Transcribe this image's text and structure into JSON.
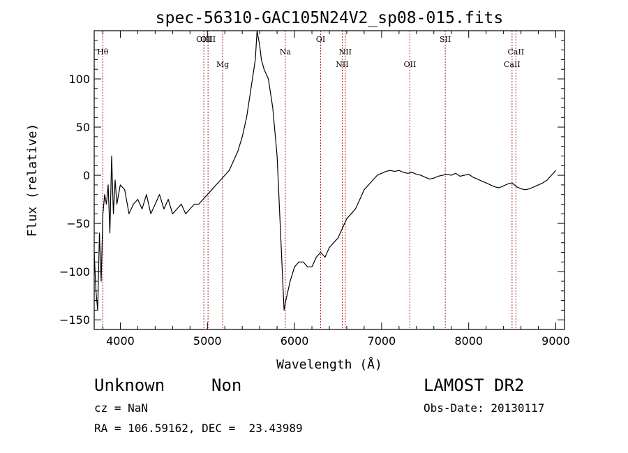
{
  "chart_data": {
    "type": "line",
    "title": "spec-56310-GAC105N24V2_sp08-015.fits",
    "xlabel": "Wavelength (Å)",
    "ylabel": "Flux (relative)",
    "xlim": [
      3700,
      9100
    ],
    "ylim": [
      -160,
      150
    ],
    "xticks": [
      4000,
      5000,
      6000,
      7000,
      8000,
      9000
    ],
    "xtick_labels": [
      "4000",
      "5000",
      "6000",
      "7000",
      "8000",
      "9000"
    ],
    "yticks": [
      100,
      50,
      0,
      -50,
      -100,
      -150
    ],
    "ytick_labels": [
      "100",
      "50",
      "0",
      "−50",
      "−100",
      "−150"
    ],
    "grid": false,
    "series_color": "#000000",
    "line_marker_color": "#b22222",
    "spectrum": {
      "x": [
        3700,
        3720,
        3740,
        3760,
        3780,
        3800,
        3820,
        3840,
        3860,
        3880,
        3900,
        3920,
        3940,
        3960,
        3980,
        4000,
        4050,
        4100,
        4150,
        4200,
        4250,
        4300,
        4350,
        4400,
        4450,
        4500,
        4550,
        4600,
        4650,
        4700,
        4750,
        4800,
        4850,
        4900,
        4950,
        5000,
        5050,
        5100,
        5150,
        5200,
        5250,
        5300,
        5350,
        5400,
        5450,
        5500,
        5550,
        5570,
        5600,
        5620,
        5650,
        5700,
        5750,
        5800,
        5820,
        5840,
        5860,
        5880,
        5900,
        5950,
        6000,
        6050,
        6100,
        6150,
        6200,
        6250,
        6300,
        6350,
        6400,
        6450,
        6500,
        6550,
        6600,
        6650,
        6700,
        6750,
        6800,
        6850,
        6900,
        6950,
        7000,
        7050,
        7100,
        7150,
        7200,
        7250,
        7300,
        7350,
        7400,
        7450,
        7500,
        7550,
        7600,
        7650,
        7700,
        7750,
        7800,
        7850,
        7900,
        7950,
        8000,
        8050,
        8100,
        8150,
        8200,
        8250,
        8300,
        8350,
        8400,
        8450,
        8500,
        8550,
        8600,
        8650,
        8700,
        8750,
        8800,
        8850,
        8900,
        8950,
        9000
      ],
      "y": [
        -80,
        -120,
        -140,
        -60,
        -110,
        -40,
        -20,
        -30,
        -10,
        -60,
        20,
        -40,
        -5,
        -30,
        -20,
        -10,
        -15,
        -40,
        -30,
        -25,
        -35,
        -20,
        -40,
        -30,
        -20,
        -35,
        -25,
        -40,
        -35,
        -30,
        -40,
        -35,
        -30,
        -30,
        -25,
        -20,
        -15,
        -10,
        -5,
        0,
        5,
        15,
        25,
        40,
        60,
        90,
        120,
        150,
        135,
        120,
        110,
        100,
        70,
        20,
        -20,
        -60,
        -100,
        -140,
        -130,
        -110,
        -95,
        -90,
        -90,
        -95,
        -95,
        -85,
        -80,
        -85,
        -75,
        -70,
        -65,
        -55,
        -45,
        -40,
        -35,
        -25,
        -15,
        -10,
        -5,
        0,
        2,
        4,
        5,
        4,
        5,
        3,
        2,
        3,
        1,
        0,
        -2,
        -4,
        -3,
        -1,
        0,
        1,
        0,
        2,
        -1,
        0,
        1,
        -2,
        -4,
        -6,
        -8,
        -10,
        -12,
        -13,
        -11,
        -9,
        -8,
        -12,
        -14,
        -15,
        -14,
        -12,
        -10,
        -8,
        -5,
        0,
        5
      ]
    },
    "lines": [
      {
        "label": "Hθ",
        "x": 3798,
        "row": 1
      },
      {
        "label": "OIII",
        "x": 4959,
        "row": 0
      },
      {
        "label": "OIII",
        "x": 5007,
        "row": 0
      },
      {
        "label": "Mg",
        "x": 5175,
        "row": 2
      },
      {
        "label": "Na",
        "x": 5894,
        "row": 1
      },
      {
        "label": "OI",
        "x": 6300,
        "row": 0
      },
      {
        "label": "NII",
        "x": 6548,
        "row": 2
      },
      {
        "label": "NII",
        "x": 6583,
        "row": 1
      },
      {
        "label": "OII",
        "x": 7325,
        "row": 2
      },
      {
        "label": "SII",
        "x": 7731,
        "row": 0
      },
      {
        "label": "CaII",
        "x": 8498,
        "row": 2
      },
      {
        "label": "CaII",
        "x": 8542,
        "row": 1
      }
    ]
  },
  "info": {
    "classification": "Unknown",
    "subclass": "Non",
    "redshift": "cz = NaN",
    "coordinates": "RA = 106.59162, DEC =  23.43989",
    "survey": "LAMOST DR2",
    "obs_date": "Obs-Date: 20130117"
  }
}
